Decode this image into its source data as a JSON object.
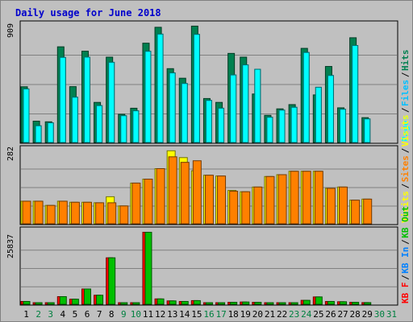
{
  "colors": {
    "background": "#c0c0c0",
    "title": "#0000cc",
    "hits": "#008050",
    "files": "#00c0ff",
    "pages": "#00ffff",
    "visits": "#ffff00",
    "sites": "#ff8000",
    "kb_in": "#0080ff",
    "kb_out": "#00c000",
    "kb_f": "#ff0000",
    "weekend_day": "#008040",
    "weekday_day": "#000000"
  },
  "chart_data": {
    "type": "bar",
    "title": "Daily usage for June 2018",
    "categories": [
      "1",
      "2",
      "3",
      "4",
      "5",
      "6",
      "7",
      "8",
      "9",
      "10",
      "11",
      "12",
      "13",
      "14",
      "15",
      "16",
      "17",
      "18",
      "19",
      "20",
      "21",
      "22",
      "23",
      "24",
      "25",
      "26",
      "27",
      "28",
      "29",
      "30",
      "31"
    ],
    "weekend_days": [
      "2",
      "3",
      "9",
      "10",
      "16",
      "17",
      "23",
      "24",
      "30",
      "31"
    ],
    "panels": [
      {
        "name": "hits-files-pages",
        "ymax": 909,
        "ymax_label": "909",
        "legend": [
          {
            "text": "Pages",
            "color": "#00ffff"
          },
          {
            "text": "Files",
            "color": "#00c0ff"
          },
          {
            "text": "Hits",
            "color": "#008050"
          }
        ],
        "series": [
          {
            "name": "Hits",
            "color": "#008050",
            "values": [
              431,
              165,
              160,
              740,
              432,
              706,
              310,
              660,
              218,
              265,
              768,
              891,
              571,
              497,
              900,
              340,
              310,
              689,
              660,
              375,
              210,
              260,
              293,
              728,
              368,
              588,
              268,
              810,
              192,
              null,
              null
            ]
          },
          {
            "name": "Files",
            "color": "#00c0ff",
            "values": [
              414,
              129,
              152,
              658,
              350,
              660,
              285,
              620,
              207,
              245,
              705,
              838,
              538,
              456,
              836,
              325,
              265,
              522,
              600,
              566,
              195,
              250,
              272,
              696,
              427,
              518,
              257,
              750,
              182,
              null,
              null
            ]
          },
          {
            "name": "Pages",
            "color": "#00ffff",
            "values": [
              414,
              129,
              152,
              658,
              350,
              660,
              285,
              620,
              207,
              245,
              705,
              838,
              538,
              456,
              836,
              325,
              265,
              522,
              600,
              566,
              195,
              250,
              272,
              696,
              427,
              518,
              257,
              750,
              182,
              null,
              null
            ]
          }
        ]
      },
      {
        "name": "visits-sites",
        "ymax": 282,
        "ymax_label": "282",
        "legend": [
          {
            "text": "Visits",
            "color": "#ffff00"
          },
          {
            "text": "Sites",
            "color": "#ff8000"
          },
          {
            "text": "Visits",
            "color": "#ffff00"
          }
        ],
        "series": [
          {
            "name": "Visits",
            "color": "#ffff00",
            "values": [
              86,
              86,
              70,
              86,
              82,
              82,
              80,
              103,
              68,
              155,
              170,
              210,
              278,
              252,
              202,
              185,
              182,
              127,
              122,
              140,
              180,
              187,
              200,
              200,
              200,
              135,
              140,
              90,
              94,
              null,
              null
            ]
          },
          {
            "name": "Sites",
            "color": "#ff8000",
            "values": [
              86,
              86,
              70,
              86,
              82,
              82,
              80,
              80,
              68,
              155,
              170,
              210,
              255,
              234,
              240,
              185,
              182,
              124,
              122,
              140,
              180,
              187,
              200,
              200,
              200,
              135,
              140,
              90,
              94,
              null,
              null
            ]
          }
        ]
      },
      {
        "name": "kbytes",
        "ymax": 25837,
        "ymax_label": "25837",
        "legend": [
          {
            "text": "KB F",
            "color": "#ff0000"
          },
          {
            "text": "KB In",
            "color": "#0080ff"
          },
          {
            "text": "KB Out",
            "color": "#00c000"
          }
        ],
        "series": [
          {
            "name": "KB F",
            "color": "#ff0000",
            "values": [
              1000,
              300,
              250,
              2700,
              1800,
              5400,
              3200,
              16400,
              250,
              300,
              25400,
              1900,
              1200,
              1000,
              1300,
              500,
              500,
              700,
              800,
              700,
              500,
              500,
              500,
              1400,
              2600,
              1000,
              900,
              700,
              600,
              null,
              null
            ]
          },
          {
            "name": "KB Out",
            "color": "#00c000",
            "values": [
              1000,
              300,
              250,
              2700,
              1800,
              5400,
              3200,
              16400,
              250,
              300,
              25400,
              1900,
              1200,
              1000,
              1300,
              500,
              500,
              700,
              800,
              700,
              500,
              500,
              500,
              1400,
              2600,
              1000,
              900,
              700,
              600,
              null,
              null
            ]
          }
        ]
      }
    ],
    "grid": true,
    "legend_placement": "right-vertical"
  }
}
